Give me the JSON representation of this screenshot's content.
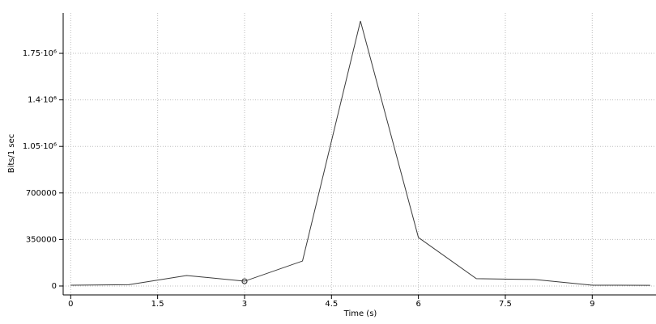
{
  "chart_data": {
    "type": "line",
    "xlabel": "Time (s)",
    "ylabel": "Bits/1 sec",
    "x": [
      0,
      1,
      2,
      3,
      4,
      5,
      6,
      7,
      8,
      9,
      10
    ],
    "series": [
      {
        "color": "#3a3a3a",
        "values": [
          6000,
          10000,
          79000,
          36000,
          188000,
          1993000,
          365000,
          55000,
          49000,
          6000,
          5000
        ]
      }
    ],
    "marked": 3,
    "xlim": [
      -0.13,
      10.1
    ],
    "xticks": [
      0,
      1.5,
      3,
      4.5,
      6,
      7.5,
      9
    ],
    "ylim": [
      -67000,
      2054000
    ],
    "yticks": [
      0,
      350000,
      700000,
      {
        "value": 1050000,
        "label": "1.05·10⁶"
      },
      {
        "value": 1400000,
        "label": "1.4·10⁶"
      },
      {
        "value": 1750000,
        "label": "1.75·10⁶"
      }
    ],
    "grid": true
  }
}
